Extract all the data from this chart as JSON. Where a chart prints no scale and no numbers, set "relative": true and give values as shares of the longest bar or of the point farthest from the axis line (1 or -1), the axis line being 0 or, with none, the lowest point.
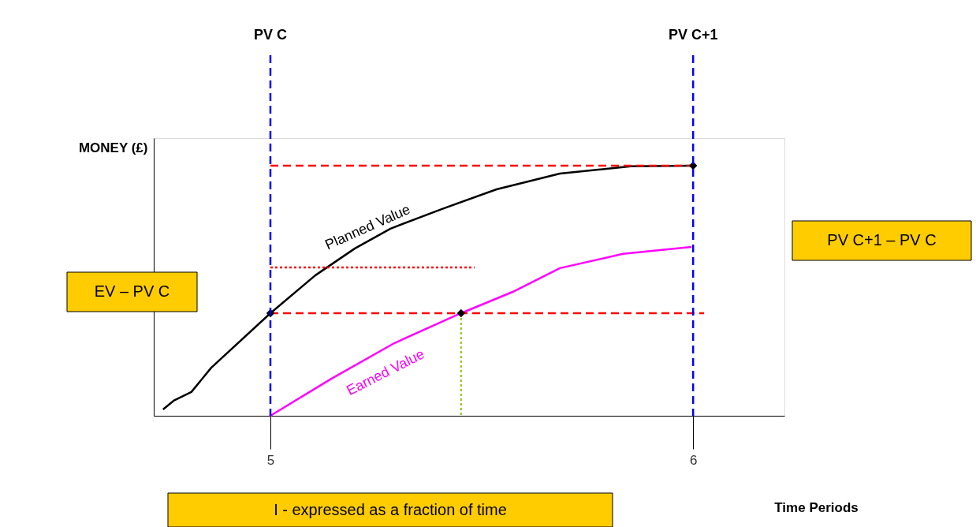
{
  "chart_data": {
    "type": "line",
    "relative": true,
    "xlabel": "Time Periods",
    "ylabel": "MONEY (£)",
    "xlim": [
      4.724,
      6.216
    ],
    "xticks": [
      5,
      6
    ],
    "grid": false,
    "legend": false,
    "series": [
      {
        "name": "Planned Value",
        "color": "#000000",
        "line_style": "solid",
        "x": [
          4.746,
          4.771,
          4.813,
          4.86,
          5,
          5.106,
          5.2,
          5.284,
          5.405,
          5.535,
          5.685,
          5.853,
          6
        ],
        "values": [
          0.025,
          0.06,
          0.095,
          0.192,
          0.41,
          0.561,
          0.669,
          0.748,
          0.826,
          0.905,
          0.968,
          0.997,
          1
        ]
      },
      {
        "name": "Earned Value",
        "color": "#ff00ff",
        "line_style": "solid",
        "x": [
          5,
          5.144,
          5.293,
          5.451,
          5.573,
          5.685,
          5.834,
          5.996
        ],
        "values": [
          0,
          0.148,
          0.29,
          0.41,
          0.495,
          0.59,
          0.647,
          0.675
        ]
      },
      {
        "type": "line",
        "color": "#ff0000",
        "line_style": "dashed",
        "x": [
          6,
          5
        ],
        "values": [
          1,
          1
        ]
      },
      {
        "type": "line",
        "color": "#ff0000",
        "line_style": "dashed",
        "x": [
          6.026,
          5
        ],
        "values": [
          0.41,
          0.41
        ]
      },
      {
        "type": "line",
        "color": "#ff0000",
        "line_style": "dotted",
        "x": [
          5.483,
          5
        ],
        "values": [
          0.593,
          0.593
        ]
      },
      {
        "type": "line",
        "color": "#99cc33",
        "line_style": "dotted",
        "x": [
          5.451,
          5.451
        ],
        "values": [
          0.41,
          0
        ]
      },
      {
        "type": "scatter",
        "color": "#000000",
        "marker": "diamond",
        "x": [
          5,
          5.451,
          6
        ],
        "values": [
          0.41,
          0.41,
          1
        ]
      }
    ],
    "ref_lines": [
      {
        "axis": "x",
        "value": 5,
        "label": "PV C",
        "color": "#0000ff",
        "line_style": "dashed"
      },
      {
        "axis": "x",
        "value": 6,
        "label": "PV C+1",
        "color": "#0000ff",
        "line_style": "dashed"
      }
    ],
    "annotations": [
      "EV – PV C",
      "PV C+1 – PV C",
      "I - expressed as a fraction of time"
    ]
  }
}
